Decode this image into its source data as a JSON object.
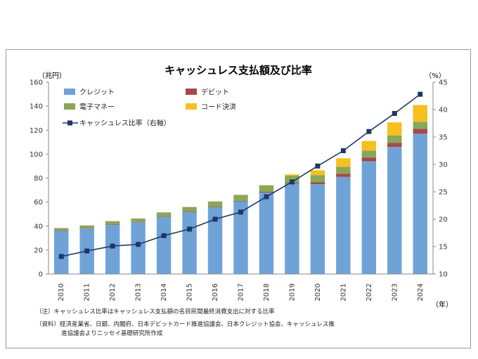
{
  "chart_data": {
    "type": "bar",
    "title": "キャッシュレス支払額及び比率",
    "y_left_unit": "（兆円）",
    "y_right_unit": "（%）",
    "x_unit": "（年）",
    "categories": [
      "2010",
      "2011",
      "2012",
      "2013",
      "2014",
      "2015",
      "2016",
      "2017",
      "2018",
      "2019",
      "2020",
      "2021",
      "2022",
      "2023",
      "2024"
    ],
    "ylim_left": [
      0,
      160
    ],
    "yticks_left": [
      "0",
      "20",
      "40",
      "60",
      "80",
      "100",
      "120",
      "140",
      "160"
    ],
    "ylim_right": [
      10,
      45
    ],
    "yticks_right": [
      "10",
      "15",
      "20",
      "25",
      "30",
      "35",
      "40",
      "45"
    ],
    "stacked": true,
    "series": [
      {
        "name": "クレジット",
        "color": "#6fa3d8",
        "axis": "left",
        "values": [
          36.0,
          38.0,
          41.0,
          43.0,
          47.5,
          51.5,
          55.5,
          60.5,
          68.0,
          75.5,
          75.0,
          81.0,
          94.0,
          106.0,
          117.0
        ]
      },
      {
        "name": "デビット",
        "color": "#a8474a",
        "axis": "left",
        "values": [
          0.3,
          0.3,
          0.3,
          0.3,
          0.4,
          0.4,
          0.5,
          0.5,
          0.6,
          0.8,
          1.5,
          2.5,
          3.0,
          3.5,
          4.0
        ]
      },
      {
        "name": "電子マネー",
        "color": "#8aa659",
        "axis": "left",
        "values": [
          2.0,
          2.2,
          2.8,
          3.0,
          3.5,
          4.0,
          4.5,
          5.0,
          5.3,
          5.8,
          6.0,
          6.0,
          6.0,
          6.0,
          6.0
        ]
      },
      {
        "name": "コード決済",
        "color": "#f5c020",
        "axis": "left",
        "values": [
          0,
          0,
          0,
          0,
          0,
          0,
          0,
          0,
          0.2,
          1.0,
          4.0,
          7.0,
          8.0,
          11.0,
          14.0
        ]
      },
      {
        "name": "キャッシュレス比率（右軸）",
        "color": "#1f3864",
        "axis": "right",
        "kind": "line",
        "values": [
          13.2,
          14.2,
          15.1,
          15.4,
          17.0,
          18.2,
          20.0,
          21.3,
          24.1,
          26.8,
          29.7,
          32.5,
          36.0,
          39.3,
          42.8
        ]
      }
    ],
    "legend_position": "top-left",
    "grid": false
  },
  "notes": [
    "（注）キャッシュレス比率はキャッシュレス支払額の名目民間最終消費支出に対する比率",
    "（資料）経済産業省、日銀、内閣府、日本デビットカード推進協議会、日本クレジット協会、キャッシュレス推",
    "進協議会よりニッセイ基礎研究所作成"
  ]
}
